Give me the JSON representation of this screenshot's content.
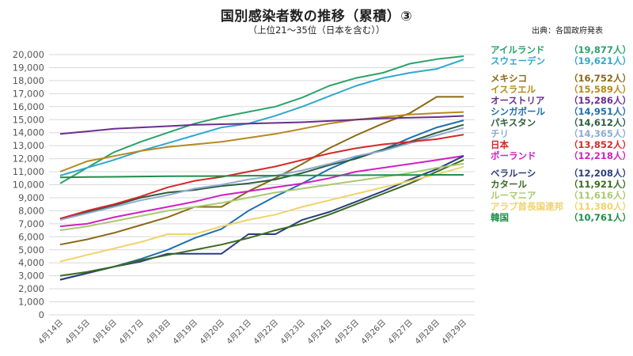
{
  "title": "国別感染者数の推移（累積）③",
  "subtitle": "（上位21〜35位（日本を含む））",
  "source": "出典：各国政府発表",
  "colors": {
    "gridline": "#d9d9d9",
    "axis_text": "#555555"
  },
  "chart_data": {
    "type": "line",
    "categories": [
      "4月14日",
      "4月15日",
      "4月16日",
      "4月17日",
      "4月18日",
      "4月19日",
      "4月20日",
      "4月21日",
      "4月22日",
      "4月23日",
      "4月24日",
      "4月25日",
      "4月26日",
      "4月27日",
      "4月28日",
      "4月29日"
    ],
    "yticks": [
      "0",
      "1,000",
      "2,000",
      "3,000",
      "4,000",
      "5,000",
      "6,000",
      "7,000",
      "8,000",
      "9,000",
      "10,000",
      "11,000",
      "12,000",
      "13,000",
      "14,000",
      "15,000",
      "16,000",
      "17,000",
      "18,000",
      "19,000",
      "20,000"
    ],
    "ylim": [
      0,
      20000
    ],
    "grid": true,
    "legend_position": "right",
    "series": [
      {
        "name": "アイルランド",
        "label": "（19,877人）",
        "color": "#2aa36b",
        "values": [
          10100,
          11300,
          12500,
          13300,
          14000,
          14700,
          15200,
          15600,
          16000,
          16700,
          17600,
          18200,
          18600,
          19300,
          19650,
          19877
        ]
      },
      {
        "name": "スウェーデン",
        "label": "（19,621人）",
        "color": "#2fa8cf",
        "values": [
          10700,
          11300,
          11900,
          12600,
          13200,
          13800,
          14400,
          14700,
          15300,
          16000,
          16800,
          17600,
          18200,
          18600,
          18900,
          19621
        ]
      },
      {
        "name": "メキシコ",
        "label": "（16,752人）",
        "color": "#8b6914",
        "values": [
          5400,
          5800,
          6300,
          6900,
          7500,
          8300,
          8300,
          9500,
          10500,
          11600,
          12800,
          13800,
          14700,
          15500,
          16752,
          16752
        ]
      },
      {
        "name": "イスラエル",
        "label": "（15,589人）",
        "color": "#b5891f",
        "values": [
          11000,
          11800,
          12200,
          12600,
          12900,
          13100,
          13300,
          13600,
          13900,
          14300,
          14700,
          15000,
          15200,
          15400,
          15500,
          15589
        ]
      },
      {
        "name": "オーストリア",
        "label": "（15,286人）",
        "color": "#6b2d8f",
        "values": [
          13900,
          14100,
          14300,
          14400,
          14500,
          14600,
          14650,
          14700,
          14750,
          14800,
          14900,
          15000,
          15100,
          15150,
          15200,
          15286
        ]
      },
      {
        "name": "シンガポール",
        "label": "（14,951人）",
        "color": "#1f6fb0",
        "values": [
          2700,
          3200,
          3700,
          4300,
          5000,
          5900,
          6600,
          8000,
          9100,
          10100,
          11200,
          12100,
          12700,
          13600,
          14400,
          14951
        ]
      },
      {
        "name": "パキスタン",
        "label": "（14,612人）",
        "color": "#2e5e3e",
        "values": [
          7400,
          7900,
          8400,
          9000,
          9400,
          9600,
          9900,
          10100,
          10400,
          10900,
          11500,
          12000,
          12700,
          13300,
          14000,
          14612
        ]
      },
      {
        "name": "チリ",
        "label": "（14,365人）",
        "color": "#8fa9d4",
        "values": [
          7300,
          7800,
          8300,
          8800,
          9200,
          9700,
          10000,
          10400,
          10700,
          11100,
          11600,
          12200,
          12600,
          13200,
          13800,
          14365
        ]
      },
      {
        "name": "日本",
        "label": "（13,852人）",
        "color": "#d42a2a",
        "values": [
          7400,
          8000,
          8500,
          9100,
          9800,
          10300,
          10600,
          11000,
          11400,
          11900,
          12400,
          12800,
          13100,
          13300,
          13500,
          13852
        ]
      },
      {
        "name": "ポーランド",
        "label": "（12,218人）",
        "color": "#d11fc0",
        "values": [
          6800,
          7000,
          7500,
          7900,
          8300,
          8700,
          9200,
          9500,
          9800,
          10100,
          10500,
          11000,
          11300,
          11600,
          11900,
          12218
        ]
      },
      {
        "name": "ベラルーシ",
        "label": "（12,208人）",
        "color": "#2b3e7e",
        "values": [
          2700,
          3200,
          3700,
          4100,
          4700,
          4700,
          4700,
          6200,
          6200,
          7300,
          7900,
          8700,
          9500,
          10400,
          11200,
          12208
        ]
      },
      {
        "name": "カタール",
        "label": "（11,921人）",
        "color": "#3a6b1f",
        "values": [
          3000,
          3300,
          3700,
          4200,
          4600,
          5000,
          5400,
          5900,
          6500,
          7000,
          7700,
          8500,
          9300,
          10100,
          11000,
          11921
        ]
      },
      {
        "name": "ルーマニア",
        "label": "（11,616人）",
        "color": "#a9c970",
        "values": [
          6500,
          6800,
          7200,
          7600,
          8000,
          8300,
          8600,
          9000,
          9400,
          9700,
          10000,
          10300,
          10600,
          10900,
          11300,
          11616
        ]
      },
      {
        "name": "アラブ首長国連邦",
        "label": "（11,380人）",
        "color": "#f0d36b",
        "values": [
          4100,
          4600,
          5100,
          5600,
          6200,
          6200,
          6800,
          7300,
          7700,
          8300,
          8800,
          9300,
          9800,
          10300,
          10800,
          11380
        ]
      },
      {
        "name": "韓国",
        "label": "（10,761人）",
        "color": "#1e8f4a",
        "values": [
          10560,
          10590,
          10610,
          10630,
          10650,
          10660,
          10670,
          10690,
          10700,
          10710,
          10720,
          10730,
          10740,
          10750,
          10760,
          10761
        ]
      }
    ]
  }
}
